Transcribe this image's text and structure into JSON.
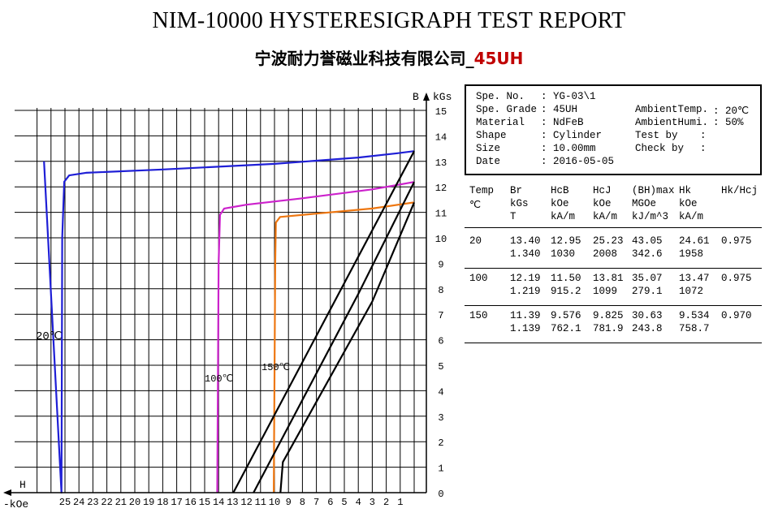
{
  "header": {
    "title": "NIM-10000 HYSTERESIGRAPH TEST REPORT",
    "company": "宁波耐力誉磁业科技有限公司_",
    "grade_tag": "45UH"
  },
  "info": {
    "spe_no_label": "Spe. No.",
    "spe_no": ": YG-03\\1",
    "spe_grade_label": "Spe. Grade",
    "spe_grade": ": 45UH",
    "material_label": "Material",
    "material": ": NdFeB",
    "shape_label": "Shape",
    "shape": ": Cylinder",
    "size_label": "Size",
    "size": ": 10.00mm",
    "date_label": "Date",
    "date": ": 2016-05-05",
    "ambient_temp_label": "AmbientTemp.",
    "ambient_temp": ": 20℃",
    "ambient_humi_label": "AmbientHumi.",
    "ambient_humi": ": 50%",
    "test_by_label": "Test by",
    "test_by": ":",
    "check_by_label": "Check by",
    "check_by": ":"
  },
  "results": {
    "headers": [
      [
        "Temp",
        "℃",
        ""
      ],
      [
        "Br",
        "kGs",
        "T"
      ],
      [
        "HcB",
        "kOe",
        "kA/m"
      ],
      [
        "HcJ",
        "kOe",
        "kA/m"
      ],
      [
        "(BH)max",
        "MGOe",
        "kJ/m^3"
      ],
      [
        "Hk",
        "kOe",
        "kA/m"
      ],
      [
        "Hk/Hcj",
        "",
        ""
      ]
    ],
    "rows": [
      {
        "temp": "20",
        "line1": [
          "13.40",
          "12.95",
          "25.23",
          "43.05",
          "24.61",
          "0.975"
        ],
        "line2": [
          "1.340",
          "1030",
          "2008",
          "342.6",
          "1958",
          ""
        ]
      },
      {
        "temp": "100",
        "line1": [
          "12.19",
          "11.50",
          "13.81",
          "35.07",
          "13.47",
          "0.975"
        ],
        "line2": [
          "1.219",
          "915.2",
          "1099",
          "279.1",
          "1072",
          ""
        ]
      },
      {
        "temp": "150",
        "line1": [
          "11.39",
          "9.576",
          "9.825",
          "30.63",
          "9.534",
          "0.970"
        ],
        "line2": [
          "1.139",
          "762.1",
          "781.9",
          "243.8",
          "758.7",
          ""
        ]
      }
    ]
  },
  "chart_data": {
    "type": "line",
    "title": "",
    "x_axis_label": "H",
    "x_axis_unit": "-kOe",
    "y_axis_label": "B",
    "y_axis_unit": "kGs",
    "x_ticks": [
      25,
      24,
      23,
      22,
      21,
      20,
      19,
      18,
      17,
      16,
      15,
      14,
      13,
      12,
      11,
      10,
      9,
      8,
      7,
      6,
      5,
      4,
      3,
      2,
      1
    ],
    "y_ticks": [
      0,
      1,
      2,
      3,
      4,
      5,
      6,
      7,
      8,
      9,
      10,
      11,
      12,
      13,
      14,
      15
    ],
    "xlim": [
      0,
      27.5
    ],
    "ylim": [
      0,
      15.5
    ],
    "grid": true,
    "series": [
      {
        "name": "20℃",
        "color": "#1f1fd6",
        "points": [
          [
            26.5,
            13.0
          ],
          [
            25.25,
            0
          ],
          [
            25.2,
            10
          ],
          [
            25.05,
            12.2
          ],
          [
            24.7,
            12.45
          ],
          [
            23.5,
            12.55
          ],
          [
            18,
            12.68
          ],
          [
            10,
            12.9
          ],
          [
            4,
            13.15
          ],
          [
            1.2,
            13.32
          ],
          [
            0,
            13.4
          ]
        ]
      },
      {
        "name": "100℃",
        "color": "#cc22cc",
        "points": [
          [
            14.1,
            0
          ],
          [
            14.0,
            9
          ],
          [
            13.9,
            10.9
          ],
          [
            13.6,
            11.15
          ],
          [
            12,
            11.3
          ],
          [
            8,
            11.55
          ],
          [
            3,
            11.9
          ],
          [
            0,
            12.19
          ]
        ]
      },
      {
        "name": "150℃",
        "color": "#ee7711",
        "points": [
          [
            10.05,
            0
          ],
          [
            9.95,
            9
          ],
          [
            9.9,
            10.6
          ],
          [
            9.6,
            10.82
          ],
          [
            7,
            10.95
          ],
          [
            3,
            11.15
          ],
          [
            0,
            11.39
          ]
        ]
      },
      {
        "name": "",
        "color": "#000000",
        "points": [
          [
            12.95,
            0
          ],
          [
            0,
            13.4
          ]
        ]
      },
      {
        "name": "",
        "color": "#000000",
        "points": [
          [
            11.5,
            0
          ],
          [
            4,
            7.8
          ],
          [
            0,
            12.19
          ]
        ]
      },
      {
        "name": "",
        "color": "#000000",
        "points": [
          [
            9.576,
            0
          ],
          [
            9.4,
            1.2
          ],
          [
            3,
            7.5
          ],
          [
            0,
            11.39
          ]
        ]
      }
    ],
    "annotations": [
      "20℃",
      "100℃",
      "150℃"
    ]
  }
}
